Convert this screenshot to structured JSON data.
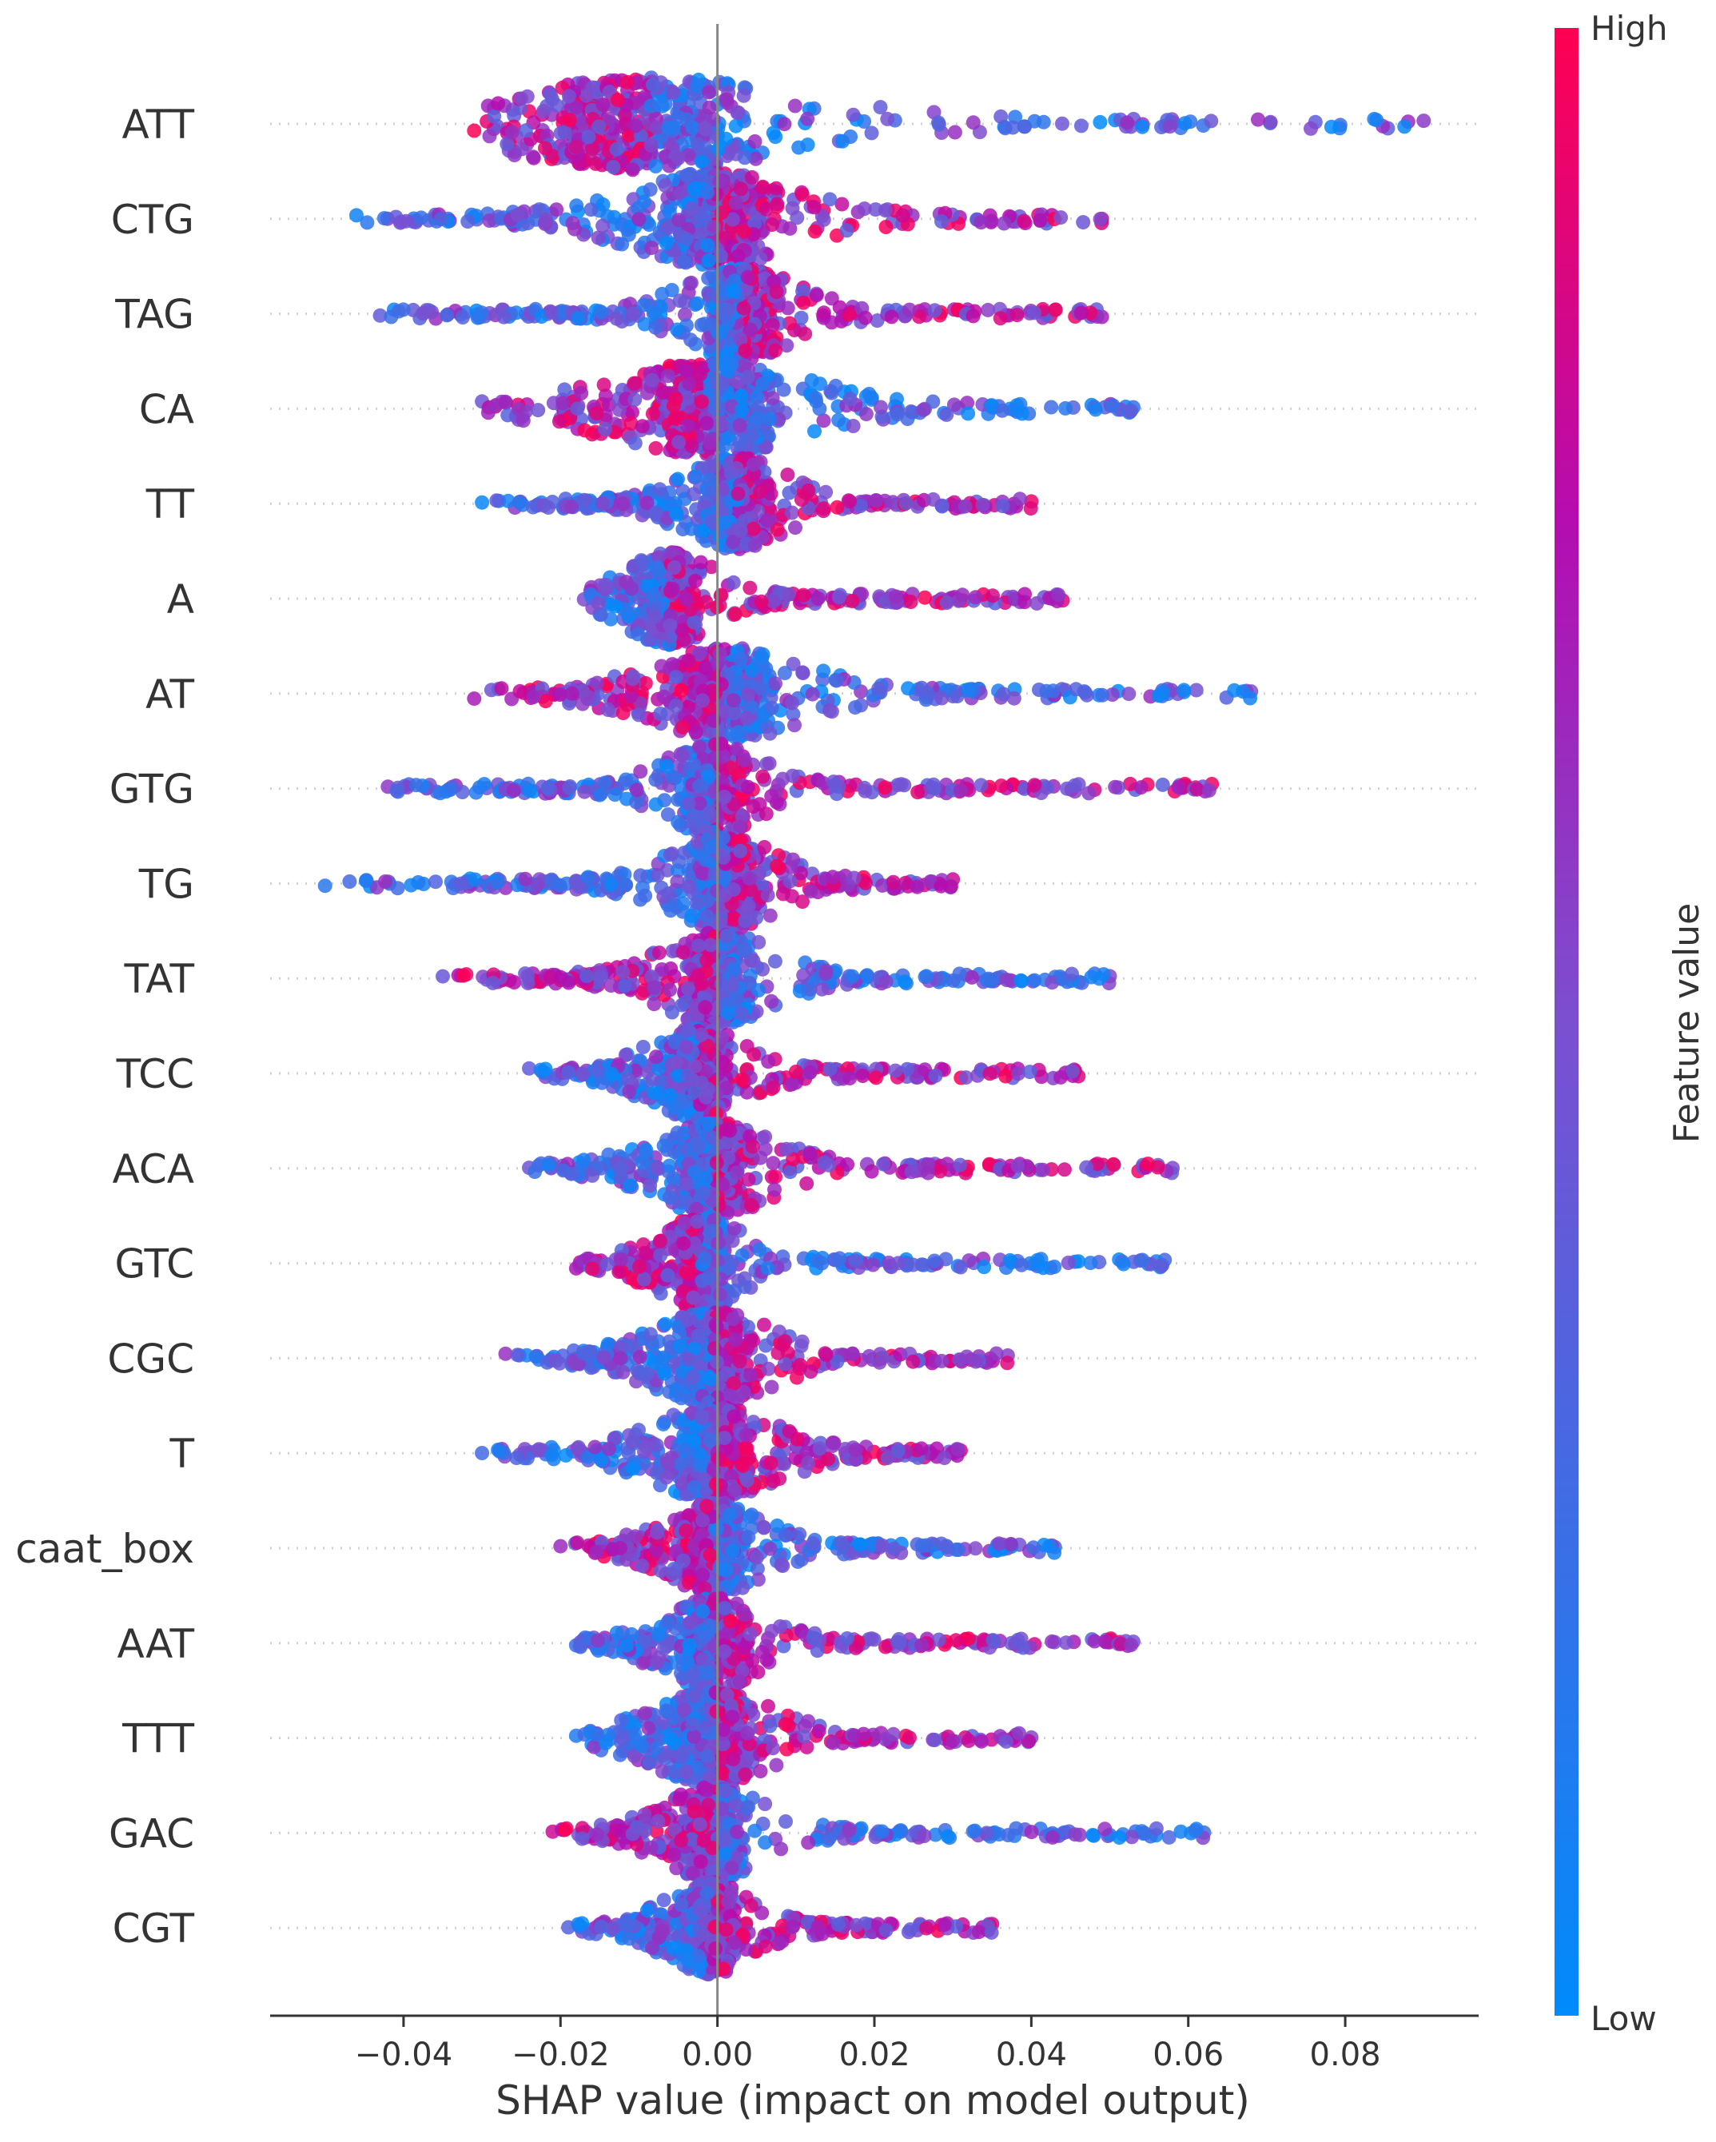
{
  "chart_data": {
    "type": "scatter",
    "subtype": "shap-beeswarm-summary",
    "title": "",
    "xlabel": "SHAP value (impact on model output)",
    "ylabel": "",
    "xlim": [
      -0.057,
      0.097
    ],
    "xticks": [
      -0.04,
      -0.02,
      0.0,
      0.02,
      0.04,
      0.06,
      0.08
    ],
    "xtick_labels": [
      "−0.04",
      "−0.02",
      "0.00",
      "0.02",
      "0.04",
      "0.06",
      "0.08"
    ],
    "colorbar": {
      "title": "Feature value",
      "high_label": "High",
      "low_label": "Low",
      "high_color": "#ff0052",
      "low_color": "#008bfb"
    },
    "features": [
      {
        "name": "ATT",
        "min": -0.031,
        "max": 0.09,
        "core": [
          -0.02,
          0.003
        ]
      },
      {
        "name": "CTG",
        "min": -0.046,
        "max": 0.049,
        "core": [
          -0.006,
          0.005
        ]
      },
      {
        "name": "TAG",
        "min": -0.043,
        "max": 0.049,
        "core": [
          0.0,
          0.006
        ]
      },
      {
        "name": "CA",
        "min": -0.03,
        "max": 0.053,
        "core": [
          -0.008,
          0.006
        ]
      },
      {
        "name": "TT",
        "min": -0.03,
        "max": 0.04,
        "core": [
          0.0,
          0.005
        ]
      },
      {
        "name": "A",
        "min": -0.017,
        "max": 0.044,
        "core": [
          -0.008,
          -0.004
        ]
      },
      {
        "name": "AT",
        "min": -0.031,
        "max": 0.068,
        "core": [
          -0.004,
          0.006
        ]
      },
      {
        "name": "GTG",
        "min": -0.042,
        "max": 0.063,
        "core": [
          -0.003,
          0.002
        ]
      },
      {
        "name": "TG",
        "min": -0.05,
        "max": 0.03,
        "core": [
          -0.002,
          0.004
        ]
      },
      {
        "name": "TAT",
        "min": -0.035,
        "max": 0.05,
        "core": [
          -0.003,
          0.003
        ]
      },
      {
        "name": "TCC",
        "min": -0.024,
        "max": 0.046,
        "core": [
          -0.005,
          0.0
        ]
      },
      {
        "name": "ACA",
        "min": -0.024,
        "max": 0.058,
        "core": [
          -0.004,
          0.003
        ]
      },
      {
        "name": "GTC",
        "min": -0.018,
        "max": 0.057,
        "core": [
          -0.004,
          0.0
        ]
      },
      {
        "name": "CGC",
        "min": -0.027,
        "max": 0.037,
        "core": [
          -0.004,
          0.003
        ]
      },
      {
        "name": "T",
        "min": -0.03,
        "max": 0.031,
        "core": [
          -0.004,
          0.003
        ]
      },
      {
        "name": "caat_box",
        "min": -0.02,
        "max": 0.043,
        "core": [
          -0.003,
          0.002
        ]
      },
      {
        "name": "AAT",
        "min": -0.018,
        "max": 0.053,
        "core": [
          -0.003,
          0.002
        ]
      },
      {
        "name": "TTT",
        "min": -0.018,
        "max": 0.04,
        "core": [
          -0.004,
          0.003
        ]
      },
      {
        "name": "GAC",
        "min": -0.021,
        "max": 0.062,
        "core": [
          -0.003,
          0.002
        ]
      },
      {
        "name": "CGT",
        "min": -0.019,
        "max": 0.035,
        "core": [
          -0.003,
          0.001
        ]
      }
    ]
  }
}
